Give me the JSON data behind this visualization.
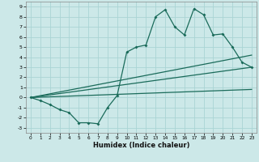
{
  "xlabel": "Humidex (Indice chaleur)",
  "xlim": [
    -0.5,
    23.5
  ],
  "ylim": [
    -3.5,
    9.5
  ],
  "xticks": [
    0,
    1,
    2,
    3,
    4,
    5,
    6,
    7,
    8,
    9,
    10,
    11,
    12,
    13,
    14,
    15,
    16,
    17,
    18,
    19,
    20,
    21,
    22,
    23
  ],
  "yticks": [
    -3,
    -2,
    -1,
    0,
    1,
    2,
    3,
    4,
    5,
    6,
    7,
    8,
    9
  ],
  "bg_color": "#cce8e8",
  "line_color": "#1a6b5a",
  "grid_color": "#aad4d4",
  "zigzag": {
    "x": [
      0,
      1,
      2,
      3,
      4,
      5,
      6,
      7,
      8,
      9,
      10,
      11,
      12,
      13,
      14,
      15,
      16,
      17,
      18,
      19,
      20,
      21,
      22,
      23
    ],
    "y": [
      0,
      -0.3,
      -0.7,
      -1.2,
      -1.5,
      -2.5,
      -2.5,
      -2.6,
      -1.0,
      0.2,
      4.5,
      5.0,
      5.2,
      8.0,
      8.7,
      7.0,
      6.2,
      8.8,
      8.2,
      6.2,
      6.3,
      5.0,
      3.5,
      3.0
    ]
  },
  "trend1": {
    "x": [
      0,
      23
    ],
    "y": [
      0,
      3.0
    ]
  },
  "trend2": {
    "x": [
      0,
      23
    ],
    "y": [
      0,
      4.2
    ]
  },
  "trend3": {
    "x": [
      0,
      23
    ],
    "y": [
      0,
      0.8
    ]
  }
}
